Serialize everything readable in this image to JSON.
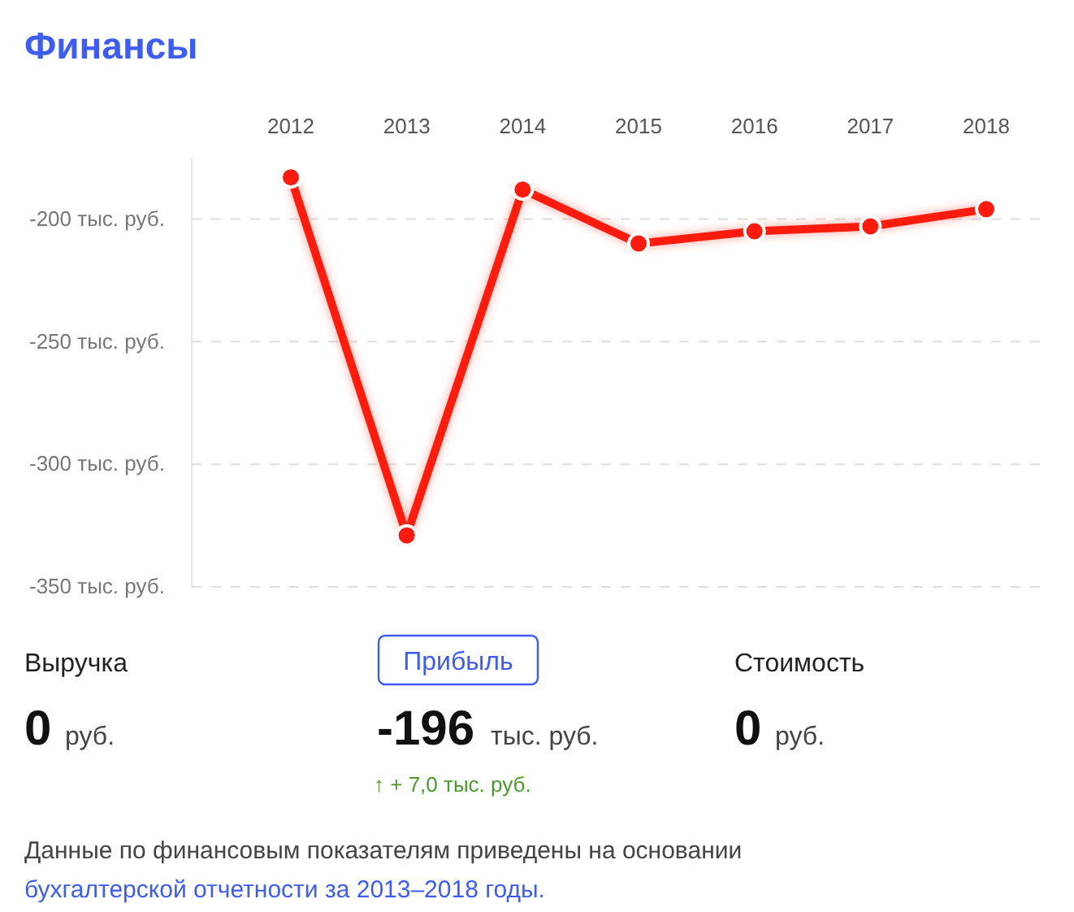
{
  "chart_data": {
    "type": "line",
    "title": "Финансы",
    "categories": [
      "2012",
      "2013",
      "2014",
      "2015",
      "2016",
      "2017",
      "2018"
    ],
    "series": [
      {
        "color": "#ff1a0e",
        "values": [
          -183,
          -329,
          -188,
          -210,
          -205,
          -203,
          -196
        ]
      }
    ],
    "ylim": [
      -350,
      -175
    ],
    "yticks": [
      {
        "value": -200,
        "label": "-200 тыс. руб."
      },
      {
        "value": -250,
        "label": "-250 тыс. руб."
      },
      {
        "value": -300,
        "label": "-300 тыс. руб."
      },
      {
        "value": -350,
        "label": "-350 тыс. руб."
      }
    ],
    "grid": "y",
    "marker": "circle",
    "line_style": "solid",
    "annotations": [
      "Выручка",
      "0",
      "руб.",
      "Прибыль",
      "-196",
      "тыс. руб.",
      "↑ + 7,0 тыс. руб.",
      "Стоимость",
      "0",
      "руб.",
      "Данные по финансовым показателям приведены на основании",
      "бухгалтерской отчетности за 2013–2018 годы."
    ]
  }
}
